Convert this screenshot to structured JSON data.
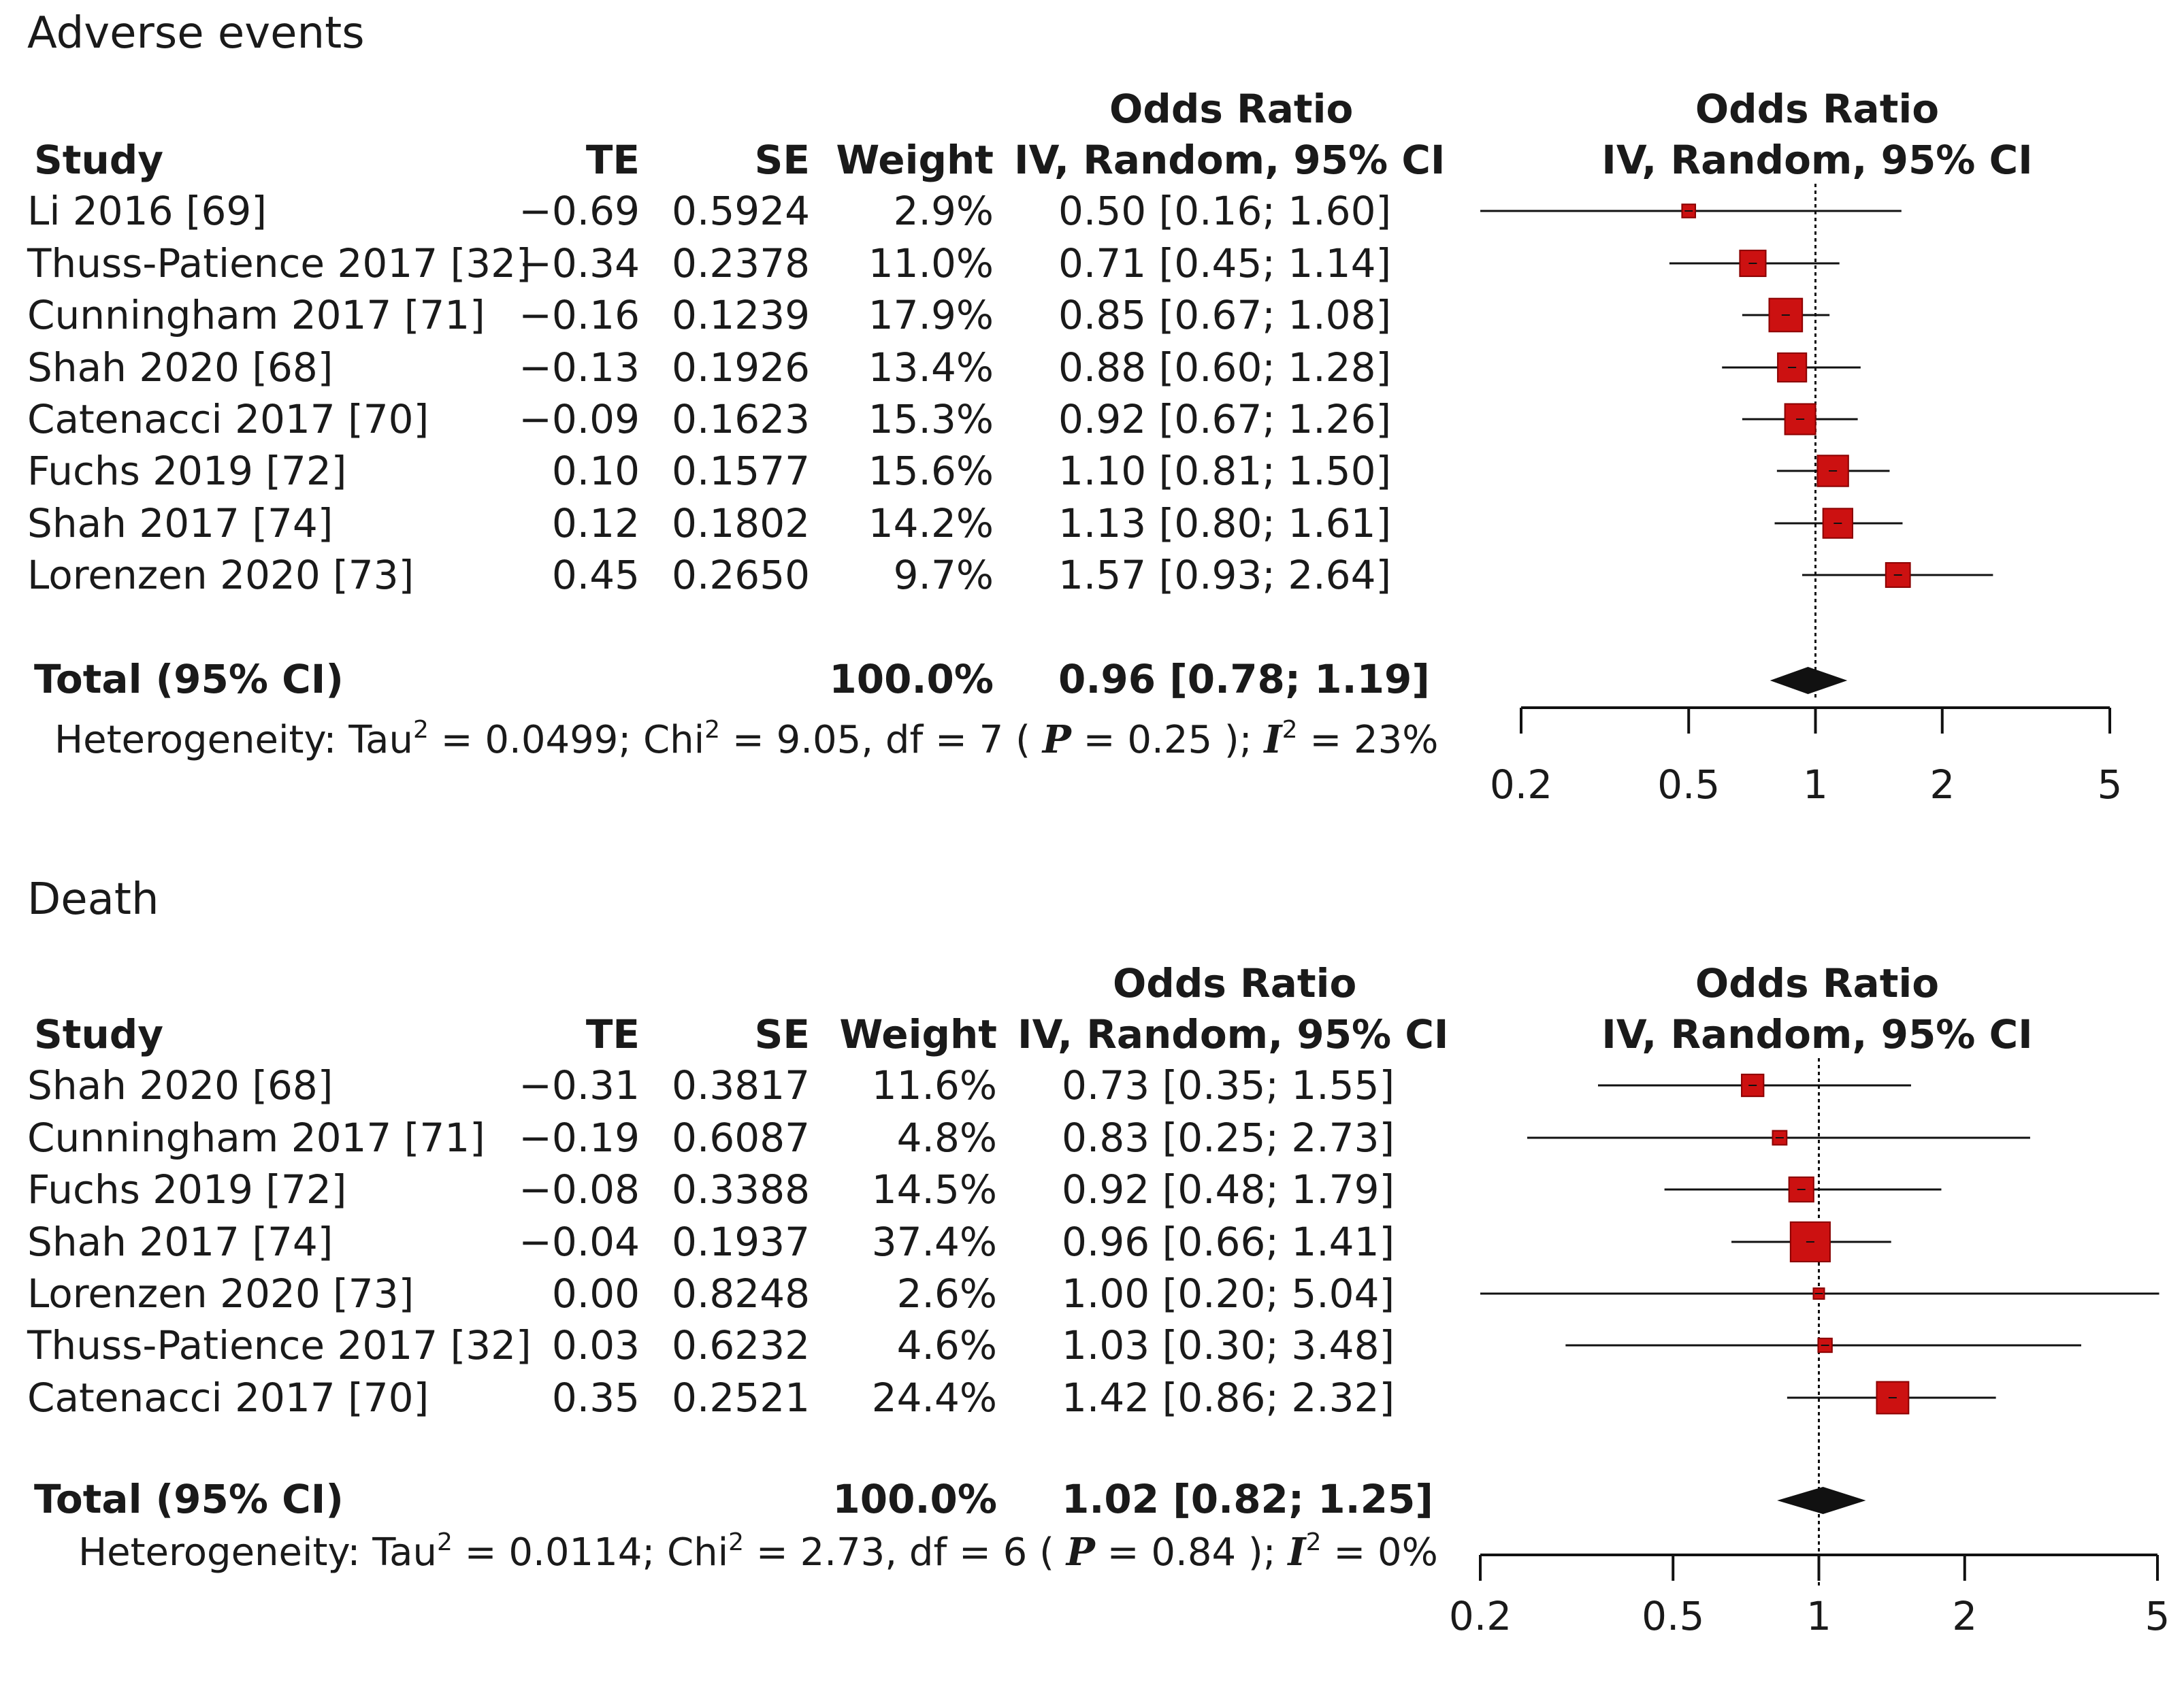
{
  "chart_data": [
    {
      "type": "forest",
      "title": "Adverse events",
      "headers": {
        "study": "Study",
        "te": "TE",
        "se": "SE",
        "weight": "Weight",
        "or_top": "Odds Ratio",
        "or_bottom": "IV, Random, 95% CI",
        "plot_top": "Odds Ratio",
        "plot_bottom": "IV, Random, 95% CI"
      },
      "studies": [
        {
          "study": "Li 2016 [69]",
          "te": "−0.69",
          "se": "0.5924",
          "weight": "2.9%",
          "weight_value": 2.9,
          "or_text": "0.50 [0.16; 1.60]",
          "or": 0.5,
          "lower": 0.16,
          "upper": 1.6
        },
        {
          "study": "Thuss-Patience 2017 [32]",
          "te": "−0.34",
          "se": "0.2378",
          "weight": "11.0%",
          "weight_value": 11.0,
          "or_text": "0.71 [0.45; 1.14]",
          "or": 0.71,
          "lower": 0.45,
          "upper": 1.14
        },
        {
          "study": "Cunningham 2017 [71]",
          "te": "−0.16",
          "se": "0.1239",
          "weight": "17.9%",
          "weight_value": 17.9,
          "or_text": "0.85 [0.67; 1.08]",
          "or": 0.85,
          "lower": 0.67,
          "upper": 1.08
        },
        {
          "study": "Shah 2020 [68]",
          "te": "−0.13",
          "se": "0.1926",
          "weight": "13.4%",
          "weight_value": 13.4,
          "or_text": "0.88 [0.60; 1.28]",
          "or": 0.88,
          "lower": 0.6,
          "upper": 1.28
        },
        {
          "study": "Catenacci 2017 [70]",
          "te": "−0.09",
          "se": "0.1623",
          "weight": "15.3%",
          "weight_value": 15.3,
          "or_text": "0.92 [0.67; 1.26]",
          "or": 0.92,
          "lower": 0.67,
          "upper": 1.26
        },
        {
          "study": "Fuchs 2019 [72]",
          "te": "0.10",
          "se": "0.1577",
          "weight": "15.6%",
          "weight_value": 15.6,
          "or_text": "1.10 [0.81; 1.50]",
          "or": 1.1,
          "lower": 0.81,
          "upper": 1.5
        },
        {
          "study": "Shah 2017 [74]",
          "te": "0.12",
          "se": "0.1802",
          "weight": "14.2%",
          "weight_value": 14.2,
          "or_text": "1.13 [0.80; 1.61]",
          "or": 1.13,
          "lower": 0.8,
          "upper": 1.61
        },
        {
          "study": "Lorenzen 2020 [73]",
          "te": "0.45",
          "se": "0.2650",
          "weight": "9.7%",
          "weight_value": 9.7,
          "or_text": "1.57 [0.93; 2.64]",
          "or": 1.57,
          "lower": 0.93,
          "upper": 2.64
        }
      ],
      "total": {
        "label": "Total (95% CI)",
        "weight": "100.0%",
        "or_text": "0.96 [0.78; 1.19]",
        "or": 0.96,
        "lower": 0.78,
        "upper": 1.19
      },
      "heterogeneity": {
        "prefix": "Heterogeneity: Tau",
        "tau2": " = 0.0499; Chi",
        "chi2": " = 9.05, df = 7 ( ",
        "p_label": "P",
        "p_value": " = 0.25 ); ",
        "i_label": "I",
        "i2": " = 23%"
      },
      "x_scale": "log",
      "xlim": [
        0.2,
        5
      ],
      "ticks": [
        0.2,
        0.5,
        1,
        2,
        5
      ],
      "tick_labels": [
        "0.2",
        "0.5",
        "1",
        "2",
        "5"
      ]
    },
    {
      "type": "forest",
      "title": "Death",
      "headers": {
        "study": "Study",
        "te": "TE",
        "se": "SE",
        "weight": "Weight",
        "or_top": "Odds Ratio",
        "or_bottom": "IV, Random, 95% CI",
        "plot_top": "Odds Ratio",
        "plot_bottom": "IV, Random, 95% CI"
      },
      "studies": [
        {
          "study": "Shah 2020 [68]",
          "te": "−0.31",
          "se": "0.3817",
          "weight": "11.6%",
          "weight_value": 11.6,
          "or_text": "0.73 [0.35; 1.55]",
          "or": 0.73,
          "lower": 0.35,
          "upper": 1.55
        },
        {
          "study": "Cunningham 2017 [71]",
          "te": "−0.19",
          "se": "0.6087",
          "weight": "4.8%",
          "weight_value": 4.8,
          "or_text": "0.83 [0.25; 2.73]",
          "or": 0.83,
          "lower": 0.25,
          "upper": 2.73
        },
        {
          "study": "Fuchs 2019 [72]",
          "te": "−0.08",
          "se": "0.3388",
          "weight": "14.5%",
          "weight_value": 14.5,
          "or_text": "0.92 [0.48; 1.79]",
          "or": 0.92,
          "lower": 0.48,
          "upper": 1.79
        },
        {
          "study": "Shah 2017 [74]",
          "te": "−0.04",
          "se": "0.1937",
          "weight": "37.4%",
          "weight_value": 37.4,
          "or_text": "0.96 [0.66; 1.41]",
          "or": 0.96,
          "lower": 0.66,
          "upper": 1.41
        },
        {
          "study": "Lorenzen 2020 [73]",
          "te": "0.00",
          "se": "0.8248",
          "weight": "2.6%",
          "weight_value": 2.6,
          "or_text": "1.00 [0.20; 5.04]",
          "or": 1.0,
          "lower": 0.2,
          "upper": 5.04
        },
        {
          "study": "Thuss-Patience 2017 [32]",
          "te": "0.03",
          "se": "0.6232",
          "weight": "4.6%",
          "weight_value": 4.6,
          "or_text": "1.03 [0.30; 3.48]",
          "or": 1.03,
          "lower": 0.3,
          "upper": 3.48
        },
        {
          "study": "Catenacci 2017 [70]",
          "te": "0.35",
          "se": "0.2521",
          "weight": "24.4%",
          "weight_value": 24.4,
          "or_text": "1.42 [0.86; 2.32]",
          "or": 1.42,
          "lower": 0.86,
          "upper": 2.32
        }
      ],
      "total": {
        "label": "Total (95% CI)",
        "weight": "100.0%",
        "or_text": "1.02 [0.82; 1.25]",
        "or": 1.02,
        "lower": 0.82,
        "upper": 1.25
      },
      "heterogeneity": {
        "prefix": "Heterogeneity: Tau",
        "tau2": " = 0.0114; Chi",
        "chi2": " = 2.73, df = 6 ( ",
        "p_label": "P",
        "p_value": " = 0.84 ); ",
        "i_label": "I",
        "i2": " = 0%"
      },
      "x_scale": "log",
      "xlim": [
        0.2,
        5
      ],
      "ticks": [
        0.2,
        0.5,
        1,
        2,
        5
      ],
      "tick_labels": [
        "0.2",
        "0.5",
        "1",
        "2",
        "5"
      ]
    }
  ],
  "colors": {
    "square": "#cc1111",
    "square_border": "#8a0000",
    "line": "#111111",
    "diamond": "#111111"
  }
}
